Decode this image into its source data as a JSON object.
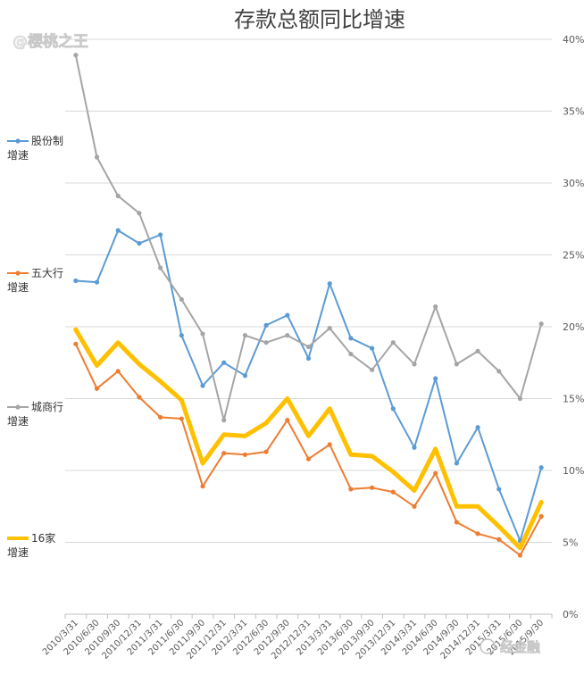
{
  "watermark_top": "@樱桃之王",
  "watermark_bottom": "经金融",
  "chart_data": {
    "type": "line",
    "title": "存款总额同比增速",
    "x": [
      "2010/3/31",
      "2010/6/30",
      "2010/9/30",
      "2010/12/31",
      "2011/3/31",
      "2011/6/30",
      "2011/9/30",
      "2011/12/31",
      "2012/3/31",
      "2012/6/30",
      "2012/9/30",
      "2012/12/31",
      "2013/3/31",
      "2013/6/30",
      "2013/9/30",
      "2013/12/31",
      "2014/3/31",
      "2014/6/30",
      "2014/9/30",
      "2014/12/31",
      "2015/3/31",
      "2015/6/30",
      "2015/9/30"
    ],
    "ylim": [
      0,
      40
    ],
    "yticks": [
      "0%",
      "5%",
      "10%",
      "15%",
      "20%",
      "25%",
      "30%",
      "35%",
      "40%"
    ],
    "y_axis_position": "right",
    "grid": true,
    "legend_position": "left",
    "series": [
      {
        "name": "股份制增速",
        "label_lines": [
          "股份制",
          "增速"
        ],
        "color": "#5b9bd5",
        "width": 2,
        "values": [
          23.2,
          23.1,
          26.7,
          25.8,
          26.4,
          19.4,
          15.9,
          17.5,
          16.6,
          20.1,
          20.8,
          17.8,
          23.0,
          19.2,
          18.5,
          14.3,
          11.6,
          16.4,
          10.5,
          13.0,
          8.7,
          5.1,
          10.2
        ]
      },
      {
        "name": "五大行增速",
        "label_lines": [
          "五大行",
          "增速"
        ],
        "color": "#ed7d31",
        "width": 2,
        "values": [
          18.8,
          15.7,
          16.9,
          15.1,
          13.7,
          13.6,
          8.9,
          11.2,
          11.1,
          11.3,
          13.5,
          10.8,
          11.8,
          8.7,
          8.8,
          8.5,
          7.5,
          9.8,
          6.4,
          5.6,
          5.2,
          4.1,
          6.8
        ]
      },
      {
        "name": "城商行增速",
        "label_lines": [
          "城商行",
          "增速"
        ],
        "color": "#a5a5a5",
        "width": 2,
        "values": [
          38.9,
          31.8,
          29.1,
          27.9,
          24.1,
          21.9,
          19.5,
          13.5,
          19.4,
          18.9,
          19.4,
          18.6,
          19.9,
          18.1,
          17.0,
          18.9,
          17.4,
          21.4,
          17.4,
          18.3,
          16.9,
          15.0,
          20.2
        ]
      },
      {
        "name": "16家增速",
        "label_lines": [
          "16家",
          "增速"
        ],
        "color": "#ffc000",
        "width": 5,
        "values": [
          19.8,
          17.3,
          18.9,
          17.4,
          16.2,
          14.9,
          10.5,
          12.5,
          12.4,
          13.3,
          15.0,
          12.4,
          14.3,
          11.1,
          11.0,
          9.9,
          8.6,
          11.5,
          7.5,
          7.5,
          6.1,
          4.6,
          7.8
        ]
      }
    ]
  }
}
